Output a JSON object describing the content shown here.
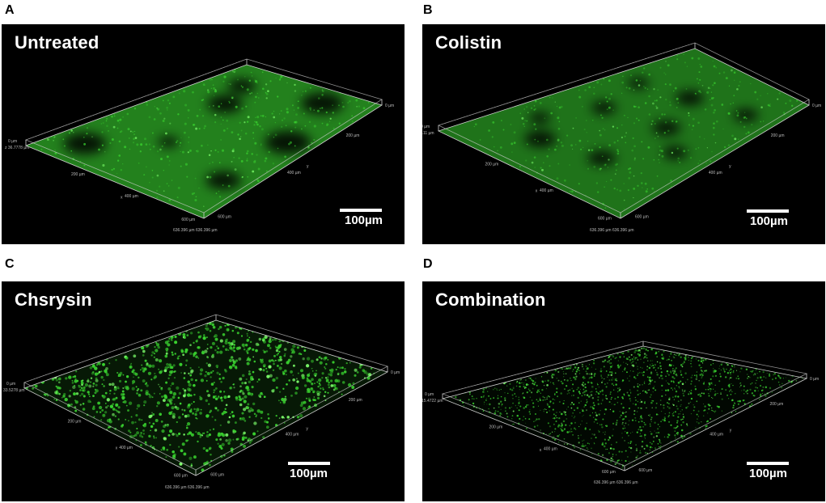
{
  "figure": {
    "panels": [
      {
        "letter": "A",
        "title": "Untreated",
        "scale_label": "100µm",
        "axis_labels": {
          "z_top": "0 µm",
          "z_depth": "z 36.7778 µm",
          "x_200": "200 µm",
          "x_400": "400 µm",
          "x_600": "600 µm",
          "x_end": "636.396 µm",
          "y_end": "636.396 µm",
          "y_200": "200 µm",
          "y_400": "400 µm",
          "y_600": "600 µm",
          "y_0": "0 µm",
          "x_letter": "x",
          "y_letter": "y"
        },
        "biofilm": "dense continuous coverage with dark voids"
      },
      {
        "letter": "B",
        "title": "Colistin",
        "scale_label": "100µm",
        "axis_labels": {
          "z_top": "0 µm",
          "z_depth": "20.11 µm",
          "x_200": "200 µm",
          "x_400": "400 µm",
          "x_600": "600 µm",
          "x_end": "636.396 µm",
          "y_end": "636.396 µm",
          "y_200": "200 µm",
          "y_400": "400 µm",
          "y_600": "600 µm",
          "y_0": "0 µm",
          "x_letter": "x",
          "y_letter": "y"
        },
        "biofilm": "continuous coverage with many dark patches"
      },
      {
        "letter": "C",
        "title": "Chsrysin",
        "scale_label": "100µm",
        "axis_labels": {
          "z_top": "0 µm",
          "z_depth": "33.5278 µm",
          "x_200": "200 µm",
          "x_400": "400 µm",
          "x_600": "600 µm",
          "x_end": "636.396 µm",
          "y_end": "636.396 µm",
          "y_200": "200 µm",
          "y_400": "400 µm",
          "y_600": "600 µm",
          "y_0": "0 µm",
          "x_letter": "x",
          "y_letter": "y"
        },
        "biofilm": "dispersed clusters of bright cells"
      },
      {
        "letter": "D",
        "title": "Combination",
        "scale_label": "100µm",
        "axis_labels": {
          "z_top": "0 µm",
          "z_depth": "15.4722 µm",
          "x_200": "200 µm",
          "x_400": "400 µm",
          "x_600": "600 µm",
          "x_end": "636.396 µm",
          "y_end": "636.396 µm",
          "y_200": "200 µm",
          "y_400": "400 µm",
          "y_600": "600 µm",
          "y_0": "0 µm",
          "x_letter": "x",
          "y_letter": "y"
        },
        "biofilm": "sparse fine scattered dots"
      }
    ],
    "colors": {
      "signal": "#39d12f",
      "background": "#000000",
      "box_edge": "#d0d0d0"
    }
  }
}
